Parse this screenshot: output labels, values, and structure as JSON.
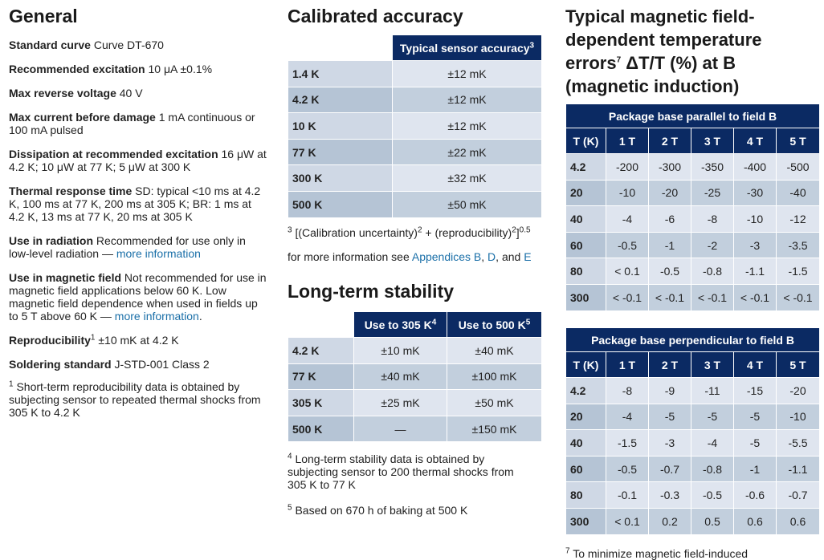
{
  "general": {
    "title": "General",
    "specs": [
      [
        {
          "label": "Standard curve"
        },
        {
          "text": " Curve DT-670"
        }
      ],
      [
        {
          "label": "Recommended excitation"
        },
        {
          "text": " 10 μA ±0.1%"
        }
      ],
      [
        {
          "label": "Max reverse voltage"
        },
        {
          "text": " 40 V"
        }
      ],
      [
        {
          "label": "Max current before damage"
        },
        {
          "text": " 1 mA continuous or 100 mA pulsed"
        }
      ],
      [
        {
          "label": "Dissipation at recommended excitation"
        },
        {
          "text": " 16 μW at 4.2 K; 10 μW at 77 K; 5 μW at 300 K"
        }
      ],
      [
        {
          "label": "Thermal response time"
        },
        {
          "text": " SD: typical <10 ms at 4.2 K, 100 ms at 77 K, 200 ms at 305 K; BR: 1 ms at 4.2 K, 13 ms at 77 K, 20 ms at 305 K"
        }
      ],
      [
        {
          "label": "Use in radiation"
        },
        {
          "text": " Recommended for use only in low-level radiation — "
        },
        {
          "link": "more information"
        }
      ],
      [
        {
          "label": "Use in magnetic field"
        },
        {
          "text": " Not recommended for use in magnetic field applications below 60 K. Low magnetic field dependence when used in fields up to 5 T above 60 K — "
        },
        {
          "link": "more information"
        },
        {
          "text": "."
        }
      ],
      [
        {
          "label": "Reproducibility"
        },
        {
          "sup": "1"
        },
        {
          "text": " ±10 mK at 4.2 K"
        }
      ],
      [
        {
          "label": "Soldering standard"
        },
        {
          "text": " J-STD-001 Class 2"
        }
      ]
    ],
    "footnote": [
      {
        "sup": "1"
      },
      {
        "text": " Short-term reproducibility data is obtained by subjecting sensor to repeated thermal shocks from 305 K to 4.2 K"
      }
    ]
  },
  "calibrated": {
    "title": "Calibrated accuracy",
    "header": [
      {
        "text": "Typical sensor accuracy"
      },
      {
        "sup": "3"
      }
    ],
    "rows": [
      [
        "1.4 K",
        "±12 mK"
      ],
      [
        "4.2 K",
        "±12 mK"
      ],
      [
        "10 K",
        "±12 mK"
      ],
      [
        "77 K",
        "±22 mK"
      ],
      [
        "300 K",
        "±32 mK"
      ],
      [
        "500 K",
        "±50 mK"
      ]
    ],
    "footnote": [
      [
        {
          "sup": "3"
        },
        {
          "text": " [(Calibration uncertainty)"
        },
        {
          "sup": "2"
        },
        {
          "text": " + (reproducibility)"
        },
        {
          "sup": "2"
        },
        {
          "text": "]"
        },
        {
          "sup": "0.5"
        }
      ],
      [
        {
          "text": "for more information see "
        },
        {
          "link": "Appendices B"
        },
        {
          "text": ", "
        },
        {
          "link": "D"
        },
        {
          "text": ", and "
        },
        {
          "link": "E"
        }
      ]
    ]
  },
  "stability": {
    "title": "Long-term stability",
    "header": [
      [
        {
          "text": "Use to 305 K"
        },
        {
          "sup": "4"
        }
      ],
      [
        {
          "text": "Use to 500 K"
        },
        {
          "sup": "5"
        }
      ]
    ],
    "rows": [
      [
        "4.2 K",
        "±10 mK",
        "±40 mK"
      ],
      [
        "77 K",
        "±40 mK",
        "±100 mK"
      ],
      [
        "305 K",
        "±25 mK",
        "±50 mK"
      ],
      [
        "500 K",
        "—",
        "±150 mK"
      ]
    ],
    "footnotes": [
      [
        {
          "sup": "4"
        },
        {
          "text": " Long-term stability data is obtained by subjecting sensor to 200 thermal shocks from 305 K to 77 K"
        }
      ],
      [
        {
          "sup": "5"
        },
        {
          "text": " Based on 670 h of baking at 500 K"
        }
      ]
    ]
  },
  "magnetic": {
    "title": [
      {
        "text": "Typical magnetic field-dependent temperature errors"
      },
      {
        "sup": "7"
      },
      {
        "text": " ΔT/T (%) at B (magnetic induction)"
      }
    ],
    "tables": [
      {
        "caption": "Package base parallel to field B",
        "header": [
          "T (K)",
          "1 T",
          "2 T",
          "3 T",
          "4 T",
          "5 T"
        ],
        "rows": [
          [
            "4.2",
            "-200",
            "-300",
            "-350",
            "-400",
            "-500"
          ],
          [
            "20",
            "-10",
            "-20",
            "-25",
            "-30",
            "-40"
          ],
          [
            "40",
            "-4",
            "-6",
            "-8",
            "-10",
            "-12"
          ],
          [
            "60",
            "-0.5",
            "-1",
            "-2",
            "-3",
            "-3.5"
          ],
          [
            "80",
            "< 0.1",
            "-0.5",
            "-0.8",
            "-1.1",
            "-1.5"
          ],
          [
            "300",
            "< -0.1",
            "< -0.1",
            "< -0.1",
            "< -0.1",
            "< -0.1"
          ]
        ]
      },
      {
        "caption": "Package base perpendicular to field B",
        "header": [
          "T (K)",
          "1 T",
          "2 T",
          "3 T",
          "4 T",
          "5 T"
        ],
        "rows": [
          [
            "4.2",
            "-8",
            "-9",
            "-11",
            "-15",
            "-20"
          ],
          [
            "20",
            "-4",
            "-5",
            "-5",
            "-5",
            "-10"
          ],
          [
            "40",
            "-1.5",
            "-3",
            "-4",
            "-5",
            "-5.5"
          ],
          [
            "60",
            "-0.5",
            "-0.7",
            "-0.8",
            "-1",
            "-1.1"
          ],
          [
            "80",
            "-0.1",
            "-0.3",
            "-0.5",
            "-0.6",
            "-0.7"
          ],
          [
            "300",
            "< 0.1",
            "0.2",
            "0.5",
            "0.6",
            "0.6"
          ]
        ]
      }
    ],
    "footnote": [
      {
        "sup": "7"
      },
      {
        "text": " To minimize magnetic field-induced"
      }
    ]
  }
}
